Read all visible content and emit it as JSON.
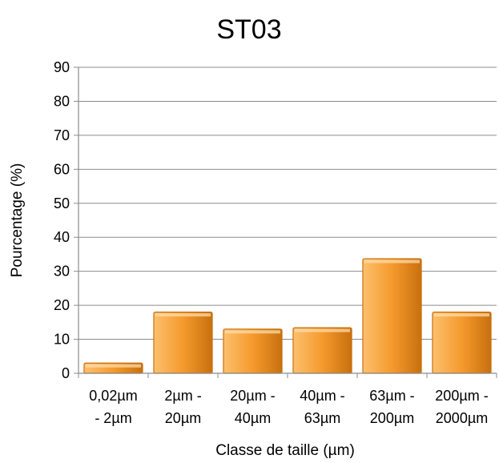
{
  "chart_data": {
    "type": "bar",
    "title": "ST03",
    "xlabel": "Classe de taille (µm)",
    "ylabel": "Pourcentage (%)",
    "ylim": [
      0,
      90
    ],
    "yticks": [
      0,
      10,
      20,
      30,
      40,
      50,
      60,
      70,
      80,
      90
    ],
    "grid": true,
    "categories": [
      [
        "0,02µm",
        "- 2µm"
      ],
      [
        "2µm -",
        "20µm"
      ],
      [
        "20µm -",
        "40µm"
      ],
      [
        "40µm -",
        "63µm"
      ],
      [
        "63µm -",
        "200µm"
      ],
      [
        "200µm -",
        "2000µm"
      ]
    ],
    "values": [
      3,
      18,
      13,
      13.4,
      33.7,
      18
    ],
    "colors": {
      "bar_light": "#fcc06e",
      "bar_mid": "#f59a2c",
      "bar_dark": "#c8700f",
      "grid": "#8c8c8c",
      "axis": "#8c8c8c"
    }
  }
}
